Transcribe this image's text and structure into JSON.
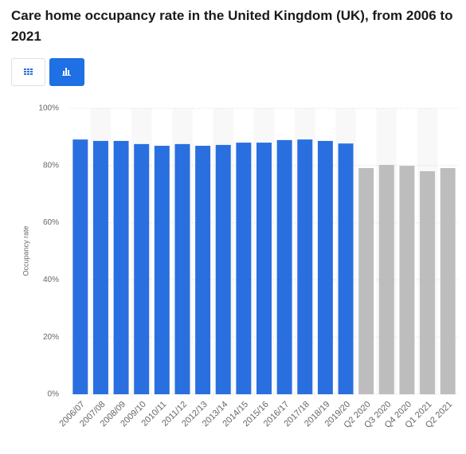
{
  "header": {
    "title": "Care home occupancy rate in the United Kingdom (UK), from 2006 to 2021"
  },
  "chart_data": {
    "type": "bar",
    "y_label": "Occupancy rate",
    "categories": [
      "2006/07",
      "2007/08",
      "2008/09",
      "2009/10",
      "2010/11",
      "2011/12",
      "2012/13",
      "2013/14",
      "2014/15",
      "2015/16",
      "2016/17",
      "2017/18",
      "2018/19",
      "2019/20",
      "Q2 2020",
      "Q3 2020",
      "Q4 2020",
      "Q1 2021",
      "Q2 2021"
    ],
    "values": [
      89.1,
      88.6,
      88.6,
      87.5,
      86.9,
      87.5,
      86.9,
      87.2,
      88,
      88,
      88.9,
      89.1,
      88.6,
      87.7,
      79.1,
      80.2,
      79.9,
      78,
      79.1
    ],
    "colors": [
      "#2a6fdf",
      "#2a6fdf",
      "#2a6fdf",
      "#2a6fdf",
      "#2a6fdf",
      "#2a6fdf",
      "#2a6fdf",
      "#2a6fdf",
      "#2a6fdf",
      "#2a6fdf",
      "#2a6fdf",
      "#2a6fdf",
      "#2a6fdf",
      "#2a6fdf",
      "#bdbdbd",
      "#bdbdbd",
      "#bdbdbd",
      "#bdbdbd",
      "#bdbdbd"
    ],
    "ylim": [
      0,
      100
    ],
    "yticks": [
      {
        "value": 0,
        "label": "0%"
      },
      {
        "value": 20,
        "label": "20%"
      },
      {
        "value": 40,
        "label": "40%"
      },
      {
        "value": 60,
        "label": "60%"
      },
      {
        "value": 80,
        "label": "80%"
      },
      {
        "value": 100,
        "label": "100%"
      }
    ],
    "grid": true
  }
}
